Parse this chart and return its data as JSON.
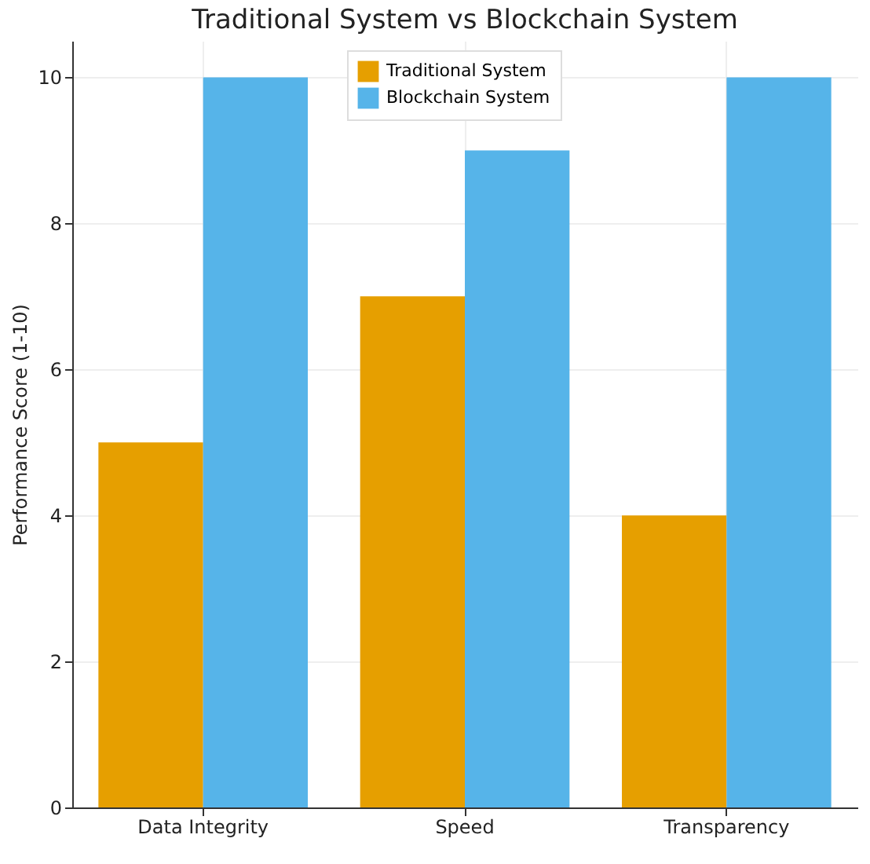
{
  "chart_data": {
    "type": "bar",
    "title": "Traditional System vs Blockchain System",
    "ylabel": "Performance Score (1-10)",
    "categories": [
      "Data Integrity",
      "Speed",
      "Transparency"
    ],
    "series": [
      {
        "name": "Traditional System",
        "color": "#e69f00",
        "values": [
          5,
          7,
          4
        ]
      },
      {
        "name": "Blockchain System",
        "color": "#56b4e9",
        "values": [
          10,
          9,
          10
        ]
      }
    ],
    "ylim": [
      0,
      10.5
    ],
    "yticks": [
      0,
      2,
      4,
      6,
      8,
      10
    ],
    "grid": true,
    "legend": "top"
  }
}
